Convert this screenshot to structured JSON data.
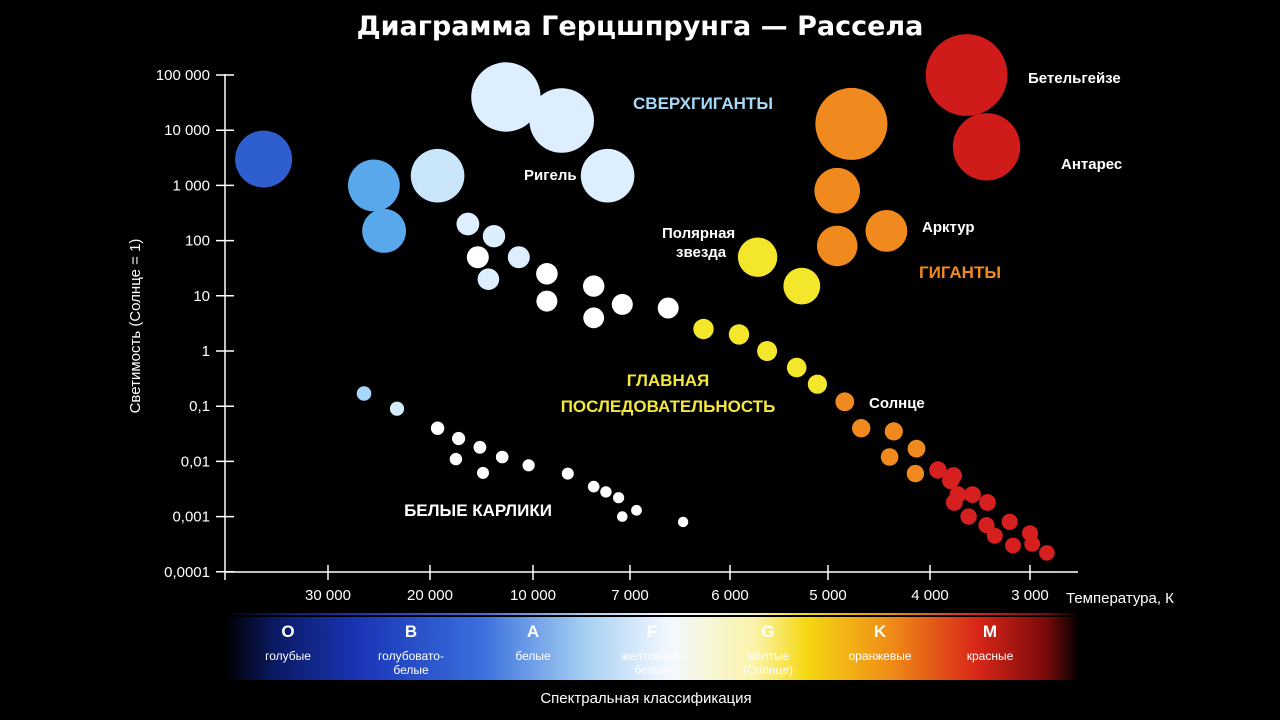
{
  "title": "Диаграмма Герцшпрунга — Рассела",
  "y_axis_label": "Светимость (Солнце = 1)",
  "x_axis_label": "Температура, К",
  "spectral_label": "Спектральная классификация",
  "y_ticks": [
    "100 000",
    "10 000",
    "1 000",
    "100",
    "10",
    "1",
    "0,1",
    "0,01",
    "0,001",
    "0,0001"
  ],
  "x_ticks": [
    {
      "t": 30000,
      "label": "30 000"
    },
    {
      "t": 20000,
      "label": "20 000"
    },
    {
      "t": 10000,
      "label": "10 000"
    },
    {
      "t": 7000,
      "label": "7 000"
    },
    {
      "t": 6000,
      "label": "6 000"
    },
    {
      "t": 5000,
      "label": "5 000"
    },
    {
      "t": 4000,
      "label": "4 000"
    },
    {
      "t": 3000,
      "label": "3 000"
    }
  ],
  "regions": {
    "supergiants": "СВЕРХГИГАНТЫ",
    "giants": "ГИГАНТЫ",
    "main_sequence_1": "ГЛАВНАЯ",
    "main_sequence_2": "ПОСЛЕДОВАТЕЛЬНОСТЬ",
    "white_dwarfs": "БЕЛЫЕ КАРЛИКИ"
  },
  "region_colors": {
    "supergiants": "#a8d8f8",
    "giants": "#f28a1e",
    "main_sequence": "#f4e73a",
    "white_dwarfs": "#ffffff"
  },
  "star_labels": {
    "rigel": "Ригель",
    "polaris_1": "Полярная",
    "polaris_2": "звезда",
    "arcturus": "Арктур",
    "betelgeuse": "Бетельгейзе",
    "antares": "Антарес",
    "sun": "Солнце"
  },
  "spectral_classes": [
    {
      "letter": "O",
      "color_1": "голубые",
      "color_2": ""
    },
    {
      "letter": "B",
      "color_1": "голубовато-",
      "color_2": "белые"
    },
    {
      "letter": "A",
      "color_1": "белые",
      "color_2": ""
    },
    {
      "letter": "F",
      "color_1": "желтовато-",
      "color_2": "белые"
    },
    {
      "letter": "G",
      "color_1": "жёлтые",
      "color_2": "(Солнце)"
    },
    {
      "letter": "K",
      "color_1": "оранжевые",
      "color_2": ""
    },
    {
      "letter": "M",
      "color_1": "красные",
      "color_2": ""
    }
  ],
  "chart_data": {
    "type": "scatter",
    "x_unit": "Температура, К",
    "y_unit": "Светимость (Солнце = 1)",
    "y_scale": "log",
    "ylim": [
      0.0001,
      100000
    ],
    "stars": [
      {
        "group": "supergiant",
        "t": 34000,
        "l": 3000,
        "color": "#2f5fcf"
      },
      {
        "group": "supergiant",
        "t": 25000,
        "l": 1000,
        "color": "#5aa8ec"
      },
      {
        "group": "supergiant",
        "t": 24000,
        "l": 150,
        "color": "#5aa8ec"
      },
      {
        "group": "supergiant",
        "t": 19000,
        "l": 1500,
        "color": "#c9e6fb"
      },
      {
        "group": "supergiant",
        "t": 12000,
        "l": 40000,
        "color": "#ddefff"
      },
      {
        "group": "supergiant",
        "t": 9000,
        "l": 15000,
        "color": "#ddefff"
      },
      {
        "group": "supergiant",
        "t": 7600,
        "l": 1500,
        "color": "#ddefff",
        "name": "rigel"
      },
      {
        "group": "supergiant",
        "t": 4750,
        "l": 13000,
        "color": "#f08a1f"
      },
      {
        "group": "supergiant",
        "t": 3600,
        "l": 100000,
        "color": "#d01b1b",
        "name": "betelgeuse"
      },
      {
        "group": "supergiant",
        "t": 3400,
        "l": 5000,
        "color": "#d01b1b",
        "name": "antares"
      },
      {
        "group": "giant",
        "t": 4900,
        "l": 800,
        "color": "#f08a1f"
      },
      {
        "group": "giant",
        "t": 4400,
        "l": 150,
        "color": "#f08a1f",
        "name": "arcturus"
      },
      {
        "group": "giant",
        "t": 4900,
        "l": 80,
        "color": "#f08a1f"
      },
      {
        "group": "giant",
        "t": 5700,
        "l": 50,
        "color": "#f4e62a",
        "name": "polaris"
      },
      {
        "group": "giant",
        "t": 5250,
        "l": 15,
        "color": "#f4e62a"
      },
      {
        "group": "main",
        "t": 15500,
        "l": 200,
        "color": "#ddefff"
      },
      {
        "group": "main",
        "t": 13000,
        "l": 120,
        "color": "#ddefff"
      },
      {
        "group": "main",
        "t": 14500,
        "l": 50,
        "color": "#ffffff"
      },
      {
        "group": "main",
        "t": 11000,
        "l": 50,
        "color": "#ddefff"
      },
      {
        "group": "main",
        "t": 13500,
        "l": 20,
        "color": "#ddefff"
      },
      {
        "group": "main",
        "t": 9500,
        "l": 25,
        "color": "#ffffff"
      },
      {
        "group": "main",
        "t": 8000,
        "l": 15,
        "color": "#ffffff"
      },
      {
        "group": "main",
        "t": 9500,
        "l": 8,
        "color": "#ffffff"
      },
      {
        "group": "main",
        "t": 7200,
        "l": 7,
        "color": "#ffffff"
      },
      {
        "group": "main",
        "t": 8000,
        "l": 4,
        "color": "#ffffff"
      },
      {
        "group": "main",
        "t": 6600,
        "l": 6,
        "color": "#ffffff"
      },
      {
        "group": "main",
        "t": 6250,
        "l": 2.5,
        "color": "#f4e62a"
      },
      {
        "group": "main",
        "t": 5900,
        "l": 2,
        "color": "#f4e62a"
      },
      {
        "group": "main",
        "t": 5600,
        "l": 1,
        "color": "#f4e62a"
      },
      {
        "group": "main",
        "t": 5300,
        "l": 0.5,
        "color": "#f4e62a"
      },
      {
        "group": "main",
        "t": 5100,
        "l": 0.25,
        "color": "#f4e62a"
      },
      {
        "group": "main",
        "t": 4820,
        "l": 0.12,
        "color": "#f08a1f",
        "name": "sun"
      },
      {
        "group": "main",
        "t": 4650,
        "l": 0.04,
        "color": "#f08a1f"
      },
      {
        "group": "main",
        "t": 4330,
        "l": 0.035,
        "color": "#f08a1f"
      },
      {
        "group": "main",
        "t": 4370,
        "l": 0.012,
        "color": "#f08a1f"
      },
      {
        "group": "main",
        "t": 4120,
        "l": 0.017,
        "color": "#f08a1f"
      },
      {
        "group": "main",
        "t": 4130,
        "l": 0.006,
        "color": "#f08a1f"
      },
      {
        "group": "main",
        "t": 3910,
        "l": 0.007,
        "color": "#d62020"
      },
      {
        "group": "main",
        "t": 3740,
        "l": 0.0055,
        "color": "#d62020"
      },
      {
        "group": "main",
        "t": 3770,
        "l": 0.0045,
        "color": "#d62020"
      },
      {
        "group": "main",
        "t": 3690,
        "l": 0.0025,
        "color": "#d62020"
      },
      {
        "group": "main",
        "t": 3540,
        "l": 0.0025,
        "color": "#d62020"
      },
      {
        "group": "main",
        "t": 3730,
        "l": 0.0018,
        "color": "#d62020"
      },
      {
        "group": "main",
        "t": 3390,
        "l": 0.0018,
        "color": "#d62020"
      },
      {
        "group": "main",
        "t": 3580,
        "l": 0.001,
        "color": "#d62020"
      },
      {
        "group": "main",
        "t": 3400,
        "l": 0.0007,
        "color": "#d62020"
      },
      {
        "group": "main",
        "t": 3180,
        "l": 0.0008,
        "color": "#d62020"
      },
      {
        "group": "main",
        "t": 3000,
        "l": 0.0005,
        "color": "#d62020"
      },
      {
        "group": "main",
        "t": 3320,
        "l": 0.00045,
        "color": "#d62020"
      },
      {
        "group": "main",
        "t": 3150,
        "l": 0.0003,
        "color": "#d62020"
      },
      {
        "group": "main",
        "t": 2980,
        "l": 0.00032,
        "color": "#d62020"
      },
      {
        "group": "main",
        "t": 2850,
        "l": 0.00022,
        "color": "#d62020"
      },
      {
        "group": "white_dwarf",
        "t": 26000,
        "l": 0.17,
        "color": "#a8d8f8"
      },
      {
        "group": "white_dwarf",
        "t": 22800,
        "l": 0.09,
        "color": "#d4ebfb"
      },
      {
        "group": "white_dwarf",
        "t": 19000,
        "l": 0.04,
        "color": "#ffffff"
      },
      {
        "group": "white_dwarf",
        "t": 16500,
        "l": 0.026,
        "color": "#ffffff"
      },
      {
        "group": "white_dwarf",
        "t": 14300,
        "l": 0.018,
        "color": "#ffffff"
      },
      {
        "group": "white_dwarf",
        "t": 12300,
        "l": 0.012,
        "color": "#ffffff"
      },
      {
        "group": "white_dwarf",
        "t": 16800,
        "l": 0.011,
        "color": "#ffffff"
      },
      {
        "group": "white_dwarf",
        "t": 10300,
        "l": 0.0085,
        "color": "#ffffff"
      },
      {
        "group": "white_dwarf",
        "t": 14000,
        "l": 0.0062,
        "color": "#ffffff"
      },
      {
        "group": "white_dwarf",
        "t": 8800,
        "l": 0.006,
        "color": "#ffffff"
      },
      {
        "group": "white_dwarf",
        "t": 8000,
        "l": 0.0035,
        "color": "#ffffff"
      },
      {
        "group": "white_dwarf",
        "t": 7650,
        "l": 0.0028,
        "color": "#ffffff"
      },
      {
        "group": "white_dwarf",
        "t": 7300,
        "l": 0.0022,
        "color": "#ffffff"
      },
      {
        "group": "white_dwarf",
        "t": 6930,
        "l": 0.0013,
        "color": "#ffffff"
      },
      {
        "group": "white_dwarf",
        "t": 7200,
        "l": 0.001,
        "color": "#ffffff"
      },
      {
        "group": "white_dwarf",
        "t": 6450,
        "l": 0.0008,
        "color": "#ffffff"
      }
    ]
  }
}
